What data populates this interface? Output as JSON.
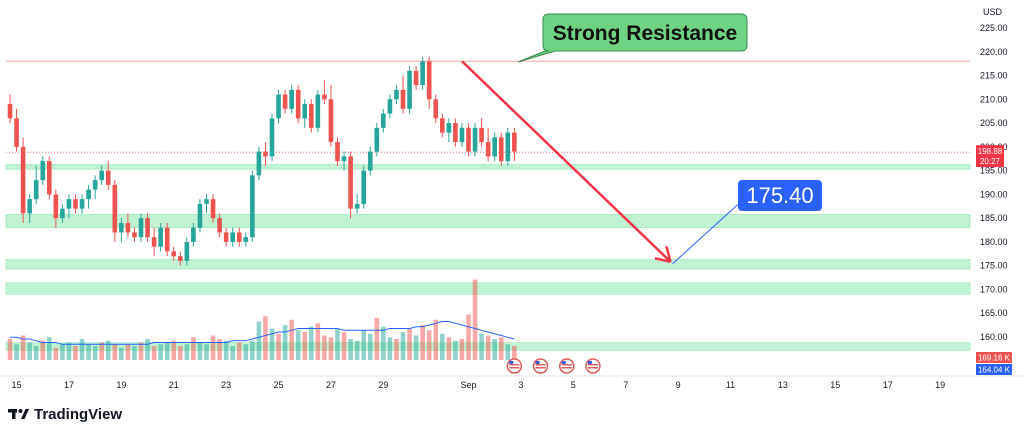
{
  "chart_data": {
    "type": "candlestick",
    "currency": "USD",
    "watermark": "TradingView",
    "y_ticks": [
      225,
      220,
      215,
      210,
      205,
      200,
      195,
      190,
      185,
      180,
      175,
      170,
      165,
      160
    ],
    "x_ticks": [
      {
        "label": "15",
        "bar": 1
      },
      {
        "label": "17",
        "bar": 9
      },
      {
        "label": "19",
        "bar": 17
      },
      {
        "label": "21",
        "bar": 25
      },
      {
        "label": "23",
        "bar": 33
      },
      {
        "label": "25",
        "bar": 41
      },
      {
        "label": "27",
        "bar": 49
      },
      {
        "label": "29",
        "bar": 57
      },
      {
        "label": "Sep",
        "bar": 70
      },
      {
        "label": "3",
        "bar": 78
      },
      {
        "label": "5",
        "bar": 86
      },
      {
        "label": "7",
        "bar": 94
      },
      {
        "label": "9",
        "bar": 102
      },
      {
        "label": "11",
        "bar": 110
      },
      {
        "label": "13",
        "bar": 118
      },
      {
        "label": "15",
        "bar": 126
      },
      {
        "label": "17",
        "bar": 134
      },
      {
        "label": "19",
        "bar": 142
      }
    ],
    "resistance_line": 218.0,
    "annotation": "Strong Resistance",
    "target_label": "175.40",
    "target_value": 175.4,
    "target_bar": 101,
    "arrow_from": {
      "bar": 69,
      "value": 218
    },
    "current_price": "198.88",
    "countdown": "20:27",
    "volume_tag_1": "169.16 K",
    "volume_tag_2": "164.04 K",
    "zones": [
      {
        "low": 195.3,
        "high": 196.3
      },
      {
        "low": 183.0,
        "high": 185.8
      },
      {
        "low": 174.3,
        "high": 176.3
      },
      {
        "low": 169.0,
        "high": 171.4
      },
      {
        "low": 157.2,
        "high": 158.8
      }
    ],
    "event_icon_bars": [
      77,
      81,
      85,
      89
    ],
    "ohlc": [
      [
        209,
        211,
        205,
        206
      ],
      [
        206,
        208,
        199,
        200
      ],
      [
        200,
        202,
        184,
        186
      ],
      [
        186,
        190,
        184,
        189
      ],
      [
        189,
        196,
        188,
        193
      ],
      [
        193,
        198,
        192,
        197
      ],
      [
        197,
        198,
        189,
        190
      ],
      [
        190,
        191,
        183,
        185
      ],
      [
        185,
        188,
        184,
        187
      ],
      [
        187,
        190,
        185,
        189
      ],
      [
        189,
        190,
        186,
        187
      ],
      [
        187,
        190,
        186,
        189
      ],
      [
        189,
        192,
        187,
        191
      ],
      [
        191,
        194,
        189,
        193
      ],
      [
        193,
        196,
        192,
        195
      ],
      [
        195,
        197,
        191,
        192
      ],
      [
        192,
        193,
        180,
        182
      ],
      [
        182,
        185,
        180,
        184
      ],
      [
        184,
        186,
        181,
        182
      ],
      [
        182,
        183,
        180,
        181
      ],
      [
        181,
        186,
        180,
        185
      ],
      [
        185,
        186,
        180,
        181
      ],
      [
        181,
        183,
        177,
        179
      ],
      [
        179,
        184,
        178,
        183
      ],
      [
        183,
        184,
        177,
        178
      ],
      [
        178,
        179,
        176,
        177
      ],
      [
        177,
        178,
        175,
        176
      ],
      [
        176,
        181,
        175,
        180
      ],
      [
        180,
        184,
        179,
        183
      ],
      [
        183,
        189,
        182,
        188
      ],
      [
        188,
        190,
        186,
        189
      ],
      [
        189,
        190,
        184,
        185
      ],
      [
        185,
        186,
        181,
        182
      ],
      [
        182,
        183,
        179,
        180
      ],
      [
        180,
        183,
        179,
        182
      ],
      [
        182,
        183,
        179,
        180
      ],
      [
        180,
        182,
        179,
        181
      ],
      [
        181,
        195,
        180,
        194
      ],
      [
        194,
        200,
        193,
        199
      ],
      [
        199,
        201,
        196,
        198
      ],
      [
        198,
        207,
        197,
        206
      ],
      [
        206,
        212,
        205,
        211
      ],
      [
        211,
        212,
        207,
        208
      ],
      [
        208,
        213,
        207,
        212
      ],
      [
        212,
        213,
        205,
        206
      ],
      [
        206,
        210,
        204,
        209
      ],
      [
        209,
        210,
        203,
        204
      ],
      [
        204,
        212,
        203,
        211
      ],
      [
        211,
        214,
        209,
        210
      ],
      [
        210,
        213,
        200,
        201
      ],
      [
        201,
        202,
        196,
        197
      ],
      [
        197,
        199,
        195,
        198
      ],
      [
        198,
        199,
        185,
        187
      ],
      [
        187,
        190,
        186,
        188
      ],
      [
        188,
        196,
        187,
        195
      ],
      [
        195,
        200,
        194,
        199
      ],
      [
        199,
        205,
        198,
        204
      ],
      [
        204,
        208,
        203,
        207
      ],
      [
        207,
        211,
        206,
        210
      ],
      [
        210,
        213,
        209,
        212
      ],
      [
        212,
        215,
        207,
        208
      ],
      [
        208,
        217,
        207,
        216
      ],
      [
        216,
        217,
        212,
        213
      ],
      [
        213,
        219,
        212,
        218
      ],
      [
        218,
        219,
        208,
        210
      ],
      [
        210,
        211,
        205,
        206
      ],
      [
        206,
        207,
        202,
        203
      ],
      [
        203,
        206,
        201,
        205
      ],
      [
        205,
        206,
        200,
        201
      ],
      [
        201,
        205,
        200,
        204
      ],
      [
        204,
        205,
        198,
        199
      ],
      [
        199,
        205,
        198,
        204
      ],
      [
        204,
        206,
        200,
        201
      ],
      [
        201,
        204,
        197,
        198
      ],
      [
        198,
        203,
        197,
        202
      ],
      [
        202,
        203,
        196,
        197
      ],
      [
        197,
        204,
        196,
        203
      ],
      [
        203,
        204,
        197,
        199
      ]
    ],
    "volumes": [
      12,
      9,
      14,
      10,
      8,
      11,
      13,
      7,
      9,
      10,
      8,
      12,
      9,
      8,
      10,
      11,
      9,
      7,
      9,
      8,
      10,
      12,
      8,
      9,
      10,
      11,
      8,
      9,
      13,
      10,
      9,
      14,
      12,
      11,
      8,
      10,
      9,
      11,
      22,
      25,
      18,
      15,
      20,
      23,
      17,
      16,
      19,
      21,
      14,
      13,
      18,
      16,
      12,
      11,
      17,
      15,
      24,
      19,
      13,
      12,
      16,
      18,
      14,
      20,
      17,
      23,
      15,
      13,
      11,
      12,
      26,
      46,
      15,
      14,
      12,
      13,
      9,
      8
    ],
    "volume_up": [
      false,
      true,
      false,
      true,
      true,
      false,
      true,
      false,
      true,
      true,
      false,
      true,
      true,
      true,
      false,
      true,
      false,
      true,
      false,
      true,
      false,
      true,
      false,
      true,
      true,
      false,
      false,
      true,
      false,
      true,
      true,
      false,
      false,
      true,
      true,
      false,
      true,
      true,
      true,
      false,
      true,
      false,
      true,
      false,
      true,
      false,
      true,
      false,
      false,
      false,
      true,
      false,
      true,
      true,
      true,
      true,
      false,
      true,
      true,
      false,
      true,
      false,
      true,
      false,
      false,
      false,
      true,
      false,
      true,
      false,
      false,
      false,
      true,
      false,
      true,
      false,
      true,
      false
    ],
    "volume_ma": [
      13,
      13,
      12,
      12,
      11,
      10,
      10,
      10,
      9,
      9,
      9,
      9,
      9,
      9,
      9,
      9,
      9,
      9,
      9,
      9,
      9,
      9,
      10,
      10,
      10,
      10,
      10,
      10,
      10,
      10,
      10,
      10,
      10,
      10,
      11,
      11,
      11,
      12,
      13,
      14,
      15,
      16,
      16,
      17,
      18,
      18,
      18,
      18,
      18,
      18,
      18,
      17,
      17,
      17,
      17,
      17,
      17,
      17,
      18,
      18,
      18,
      18,
      19,
      19,
      20,
      21,
      22,
      22,
      21,
      20,
      19,
      18,
      17,
      16,
      15,
      14,
      13,
      12
    ]
  }
}
